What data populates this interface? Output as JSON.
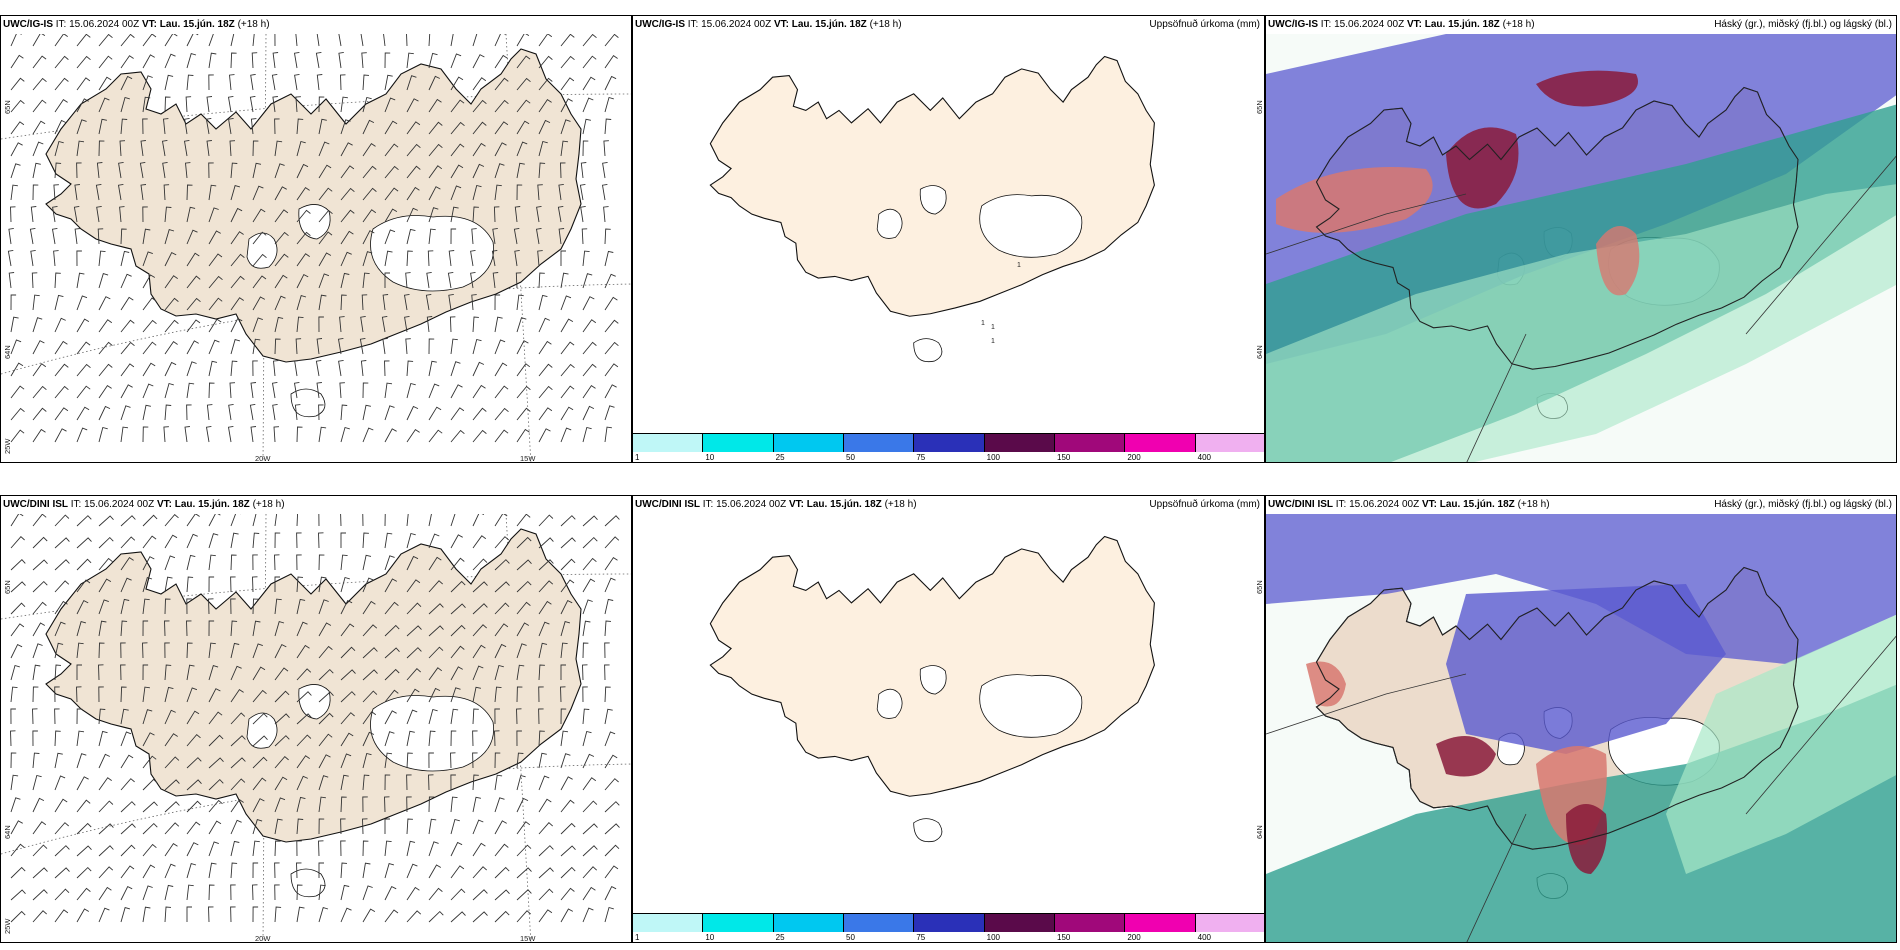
{
  "rows": [
    {
      "model": "UWC/IG-IS",
      "it_label": "IT: 15.06.2024 00Z",
      "vt_label": "VT: Lau. 15.jún. 18Z",
      "lead": "(+18 h)"
    },
    {
      "model": "UWC/DINI ISL",
      "it_label": "IT: 15.06.2024 00Z",
      "vt_label": "VT: Lau. 15.jún. 18Z",
      "lead": "(+18 h)"
    }
  ],
  "precip_title": "Uppsöfnuð úrkoma (mm)",
  "cloud_title": "Háský (gr.), miðský (fj.bl.) og lágský (bl.)",
  "wind_axis": {
    "lat_top": "65N",
    "lat_bottom": "64N",
    "lon_left": "25W",
    "lon_mid": "20W",
    "lon_right": "15W"
  },
  "precip_axis": {
    "lat_top": "65N",
    "lat_bottom": "64N"
  },
  "precip_marks_row1": [
    "1",
    "1",
    "1",
    "1"
  ],
  "colorbar": {
    "ticks": [
      "1",
      "10",
      "25",
      "50",
      "75",
      "100",
      "150",
      "200",
      "400"
    ],
    "colors": [
      "#bff7f7",
      "#00e8e8",
      "#00c8f0",
      "#3a78e8",
      "#2a30b8",
      "#5a0a4a",
      "#a0087a",
      "#f000b0",
      "#f0b0f0"
    ]
  },
  "colors": {
    "land": "#f0e4d4",
    "land_precip": "#fdf0e0",
    "cloud_high": "#d87870",
    "cloud_high_dark": "#8a1a3a",
    "cloud_mid": "#5a5ad0",
    "cloud_low": "#30a090",
    "cloud_low_light": "#a8e8c8"
  }
}
